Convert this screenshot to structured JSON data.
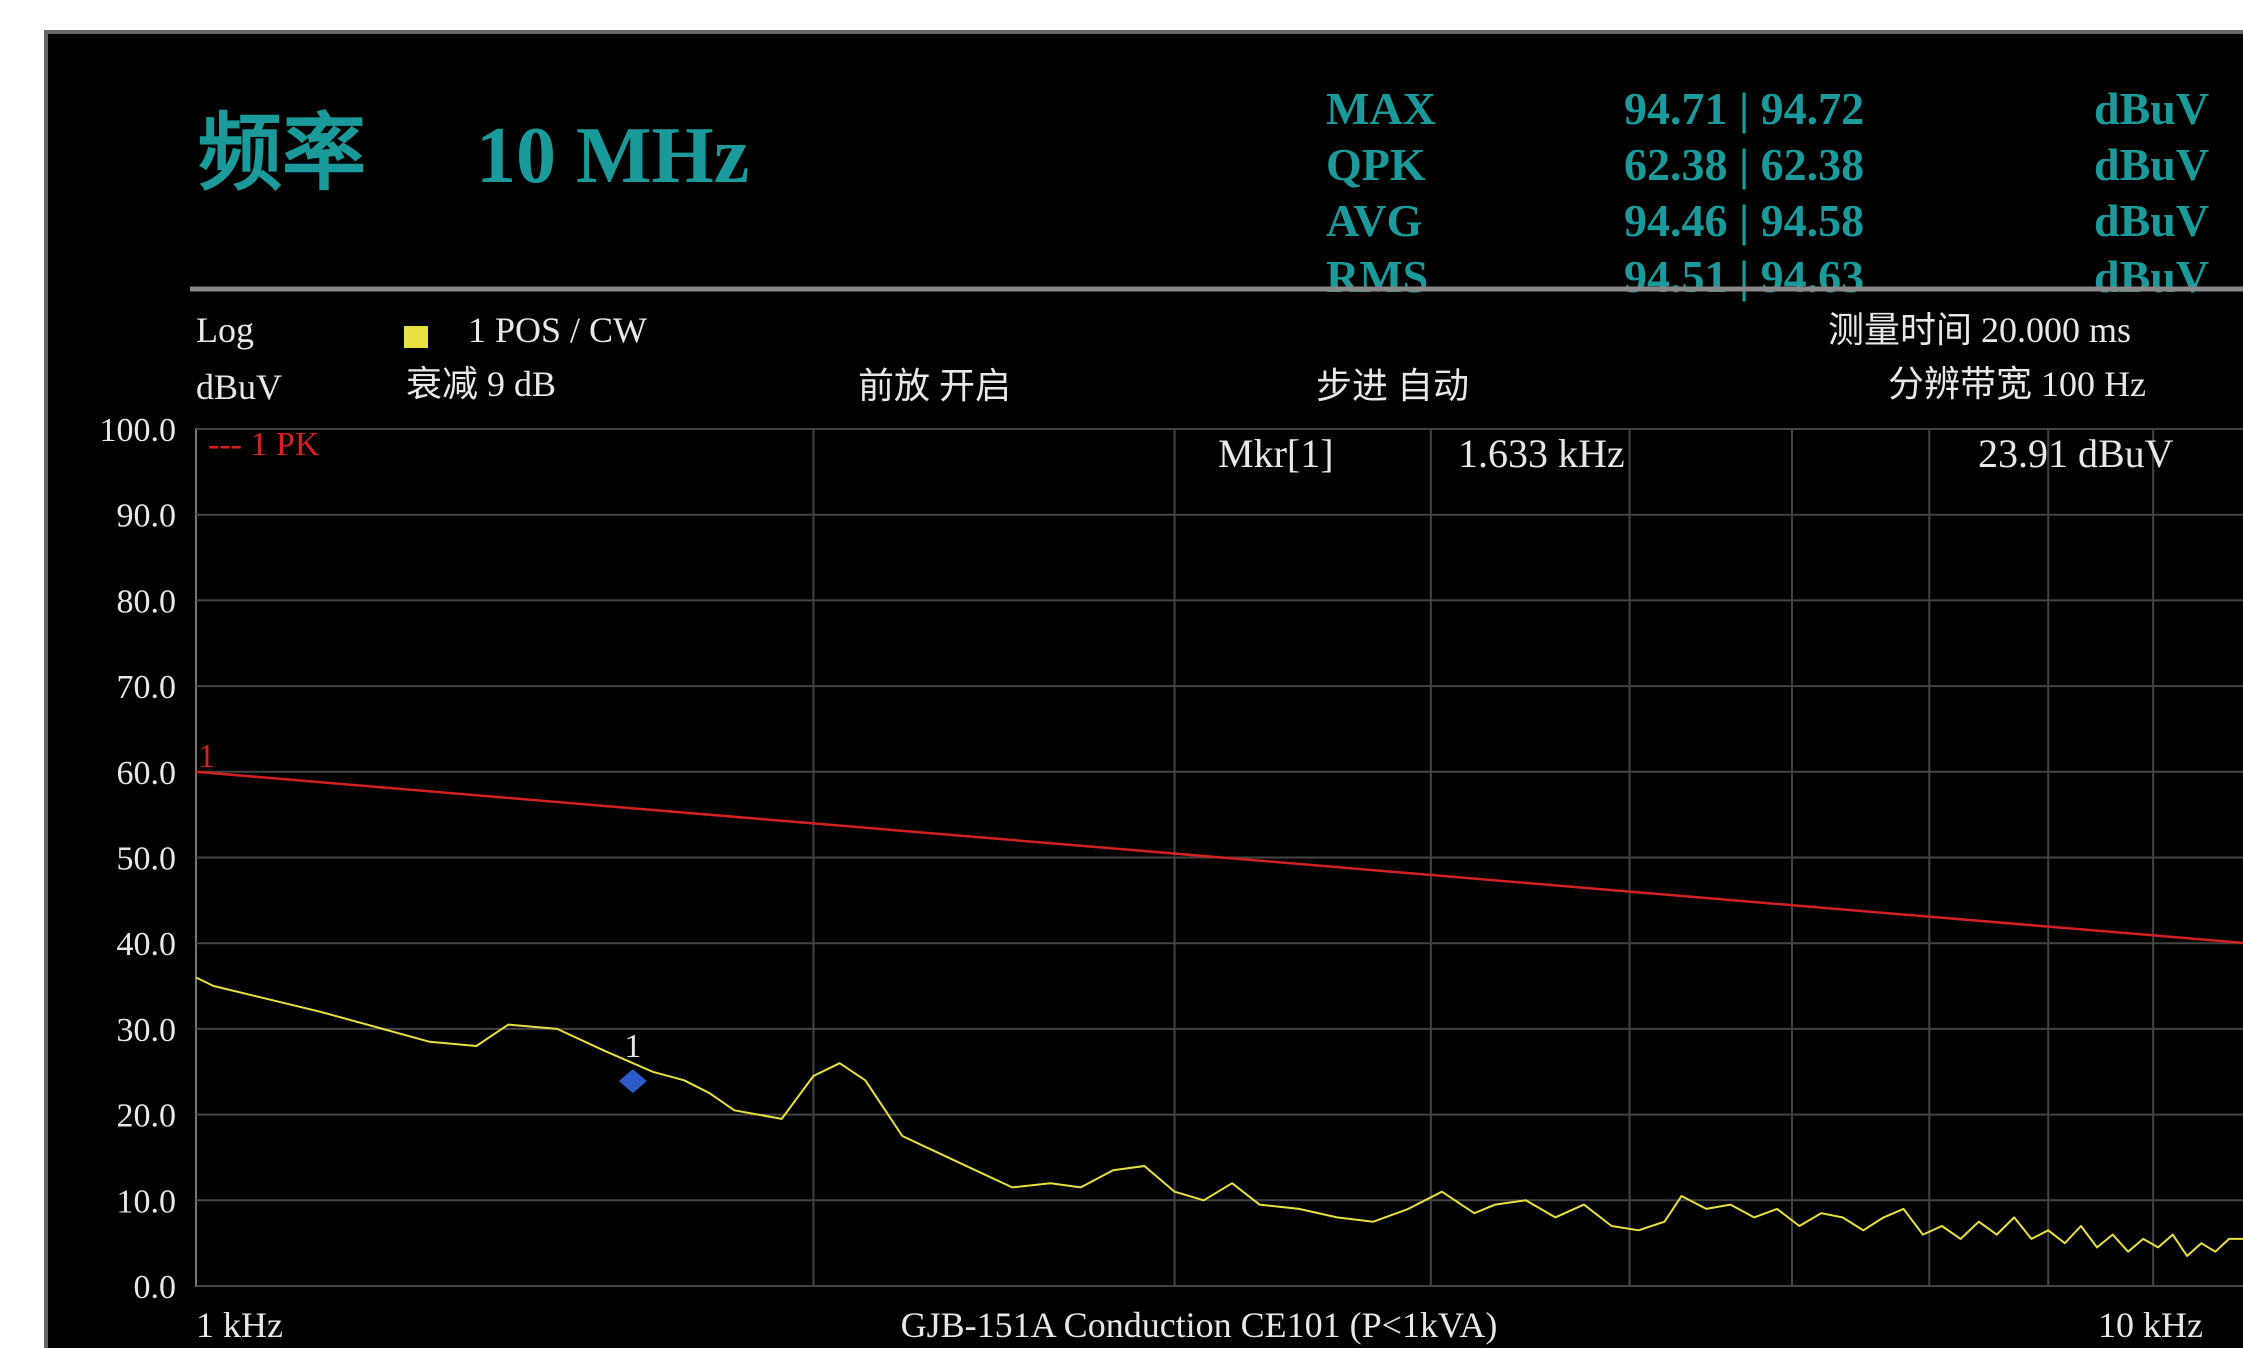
{
  "header": {
    "title_label": "频率",
    "title_value": "10 MHz",
    "readings": [
      {
        "label": "MAX",
        "value": "94.71 | 94.72",
        "unit": "dBuV"
      },
      {
        "label": "QPK",
        "value": "62.38 | 62.38",
        "unit": "dBuV"
      },
      {
        "label": "AVG",
        "value": "94.46 | 94.58",
        "unit": "dBuV"
      },
      {
        "label": "RMS",
        "value": "94.51 | 94.63",
        "unit": "dBuV"
      }
    ]
  },
  "settings": {
    "scale": "Log",
    "unit": "dBuV",
    "trace_mode": "1 POS / CW",
    "attenuation": "衰减  9 dB",
    "preamp": "前放  开启",
    "step": "步进  自动",
    "meas_time": "测量时间  20.000 ms",
    "rbw": "分辨带宽  100 Hz"
  },
  "marker": {
    "label": "Mkr[1]",
    "freq": "1.633 kHz",
    "level": "23.91 dBuV",
    "tag": "1"
  },
  "colors": {
    "accent": "#1a9a9a",
    "limit": "#d42020",
    "trace": "#e8e040",
    "marker": "#2b5cc8",
    "grid": "#444444",
    "text": "#e8e8e8"
  },
  "chart_data": {
    "type": "line",
    "title": "GJB-151A Conduction CE101 (P<1kVA)",
    "xlabel": "",
    "ylabel": "dBuV",
    "x_scale": "log",
    "xlim_khz": [
      1,
      10
    ],
    "x_tick_labels": [
      "1 kHz",
      "10 kHz"
    ],
    "ylim": [
      0,
      100
    ],
    "y_ticks": [
      "0.0",
      "10.0",
      "20.0",
      "30.0",
      "40.0",
      "50.0",
      "60.0",
      "70.0",
      "80.0",
      "90.0",
      "100.0"
    ],
    "legend": "--- 1 PK",
    "grid": true,
    "series": [
      {
        "limit_label": "1",
        "style": "limit",
        "x_khz": [
          1,
          10
        ],
        "values": [
          60,
          40
        ]
      },
      {
        "style": "trace",
        "x_khz": [
          1.0,
          1.02,
          1.15,
          1.3,
          1.37,
          1.42,
          1.5,
          1.58,
          1.67,
          1.73,
          1.78,
          1.83,
          1.93,
          2.0,
          2.06,
          2.12,
          2.21,
          2.35,
          2.5,
          2.61,
          2.7,
          2.8,
          2.9,
          3.0,
          3.1,
          3.2,
          3.3,
          3.45,
          3.6,
          3.75,
          3.9,
          4.05,
          4.2,
          4.3,
          4.45,
          4.6,
          4.75,
          4.9,
          5.05,
          5.2,
          5.3,
          5.45,
          5.6,
          5.75,
          5.9,
          6.05,
          6.2,
          6.35,
          6.5,
          6.65,
          6.8,
          6.95,
          7.1,
          7.25,
          7.4,
          7.55,
          7.7,
          7.85,
          8.0,
          8.15,
          8.3,
          8.45,
          8.6,
          8.75,
          8.9,
          9.05,
          9.2,
          9.35,
          9.5,
          9.65,
          9.8,
          10.0
        ],
        "values": [
          36.0,
          35.0,
          32.0,
          28.5,
          28.0,
          30.5,
          30.0,
          27.5,
          25.0,
          24.0,
          22.5,
          20.5,
          19.5,
          24.5,
          26.0,
          24.0,
          17.5,
          14.5,
          11.5,
          12.0,
          11.5,
          13.5,
          14.0,
          11.0,
          10.0,
          12.0,
          9.5,
          9.0,
          8.0,
          7.5,
          9.0,
          11.0,
          8.5,
          9.5,
          10.0,
          8.0,
          9.5,
          7.0,
          6.5,
          7.5,
          10.5,
          9.0,
          9.5,
          8.0,
          9.0,
          7.0,
          8.5,
          8.0,
          6.5,
          8.0,
          9.0,
          6.0,
          7.0,
          5.5,
          7.5,
          6.0,
          8.0,
          5.5,
          6.5,
          5.0,
          7.0,
          4.5,
          6.0,
          4.0,
          5.5,
          4.5,
          6.0,
          3.5,
          5.0,
          4.0,
          5.5,
          5.5
        ]
      }
    ]
  }
}
